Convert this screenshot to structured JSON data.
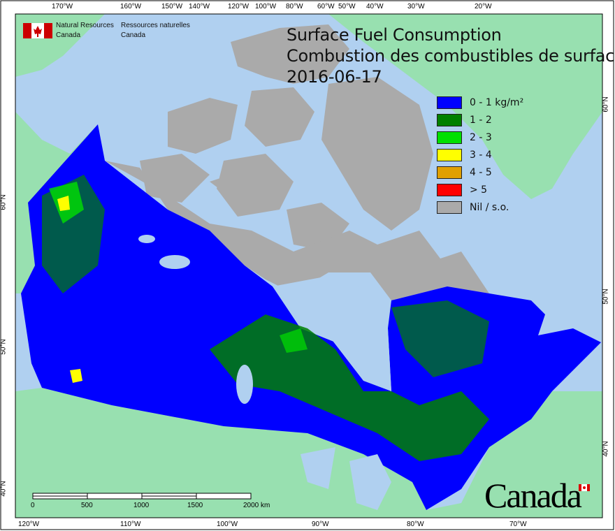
{
  "title": {
    "line1": "Surface Fuel Consumption",
    "line2": "Combustion des combustibles de surface",
    "date": "2016-06-17"
  },
  "agency": {
    "en_line1": "Natural Resources",
    "en_line2": "Canada",
    "fr_line1": "Ressources naturelles",
    "fr_line2": "Canada",
    "logo": "canada-flag-icon"
  },
  "legend": [
    {
      "label": "0 - 1 kg/m²",
      "color": "#0000ff"
    },
    {
      "label": "1 - 2",
      "color": "#008000"
    },
    {
      "label": "2 - 3",
      "color": "#00e000"
    },
    {
      "label": "3 - 4",
      "color": "#ffff00"
    },
    {
      "label": "4 - 5",
      "color": "#e0a000"
    },
    {
      "label": "> 5",
      "color": "#ff0000"
    },
    {
      "label": "Nil / s.o.",
      "color": "#aaaaaa"
    }
  ],
  "axes": {
    "top": [
      "170°W",
      "160°W",
      "150°W",
      "140°W",
      "120°W",
      "100°W",
      "80°W",
      "60°W",
      "50°W",
      "40°W",
      "30°W",
      "20°W"
    ],
    "bottom": [
      "120°W",
      "110°W",
      "100°W",
      "90°W",
      "80°W",
      "70°W"
    ],
    "left": [
      "60°N",
      "50°N",
      "40°N"
    ],
    "right": [
      "60°N",
      "50°N",
      "40°N"
    ]
  },
  "scale_bar": {
    "labels": [
      "0",
      "500",
      "1000",
      "1500",
      "2000 km"
    ]
  },
  "wordmark": "Canada",
  "colors": {
    "water": "#b0d0f0",
    "foreign_land": "#98e0b0",
    "no_data": "#aaaaaa"
  }
}
